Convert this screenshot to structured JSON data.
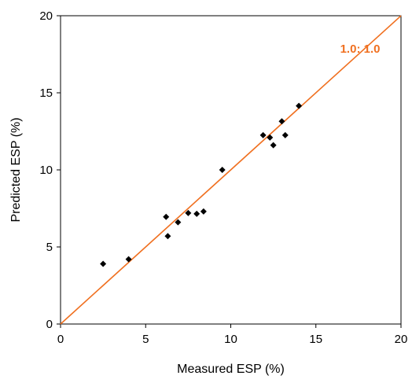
{
  "chart_data": {
    "type": "scatter",
    "xlabel": "Measured ESP (%)",
    "ylabel": "Predicted ESP (%)",
    "xlim": [
      0,
      20
    ],
    "ylim": [
      0,
      20
    ],
    "x_ticks": [
      "0",
      "5",
      "10",
      "15",
      "20"
    ],
    "y_ticks": [
      "0",
      "5",
      "10",
      "15",
      "20"
    ],
    "grid": false,
    "legend": "none",
    "series": [
      {
        "marker": "diamond",
        "color": "#000000",
        "x": [
          2.5,
          4.0,
          6.2,
          6.3,
          6.9,
          7.5,
          8.0,
          8.4,
          9.5,
          11.9,
          12.3,
          12.5,
          13.0,
          13.2,
          14.0
        ],
        "y": [
          3.9,
          4.2,
          6.95,
          5.7,
          6.6,
          7.2,
          7.15,
          7.3,
          10.0,
          12.25,
          12.1,
          11.6,
          13.15,
          12.25,
          14.15
        ]
      }
    ],
    "reference_line": {
      "from": [
        0,
        0
      ],
      "to": [
        20,
        20
      ],
      "color": "#f07020",
      "label": "1.0: 1.0"
    }
  }
}
